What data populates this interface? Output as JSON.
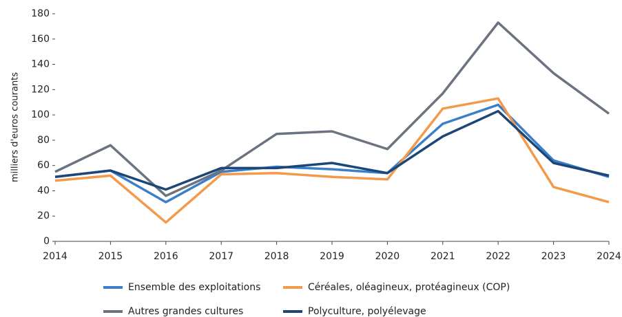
{
  "chart_data": {
    "type": "line",
    "y_label": "milliers d'euros courants",
    "categories": [
      "2014",
      "2015",
      "2016",
      "2017",
      "2018",
      "2019",
      "2020",
      "2021",
      "2022",
      "2023",
      "2024"
    ],
    "series": [
      {
        "name": "Ensemble des exploitations",
        "color": "#3a7fc8",
        "values": [
          51,
          56,
          31,
          55,
          59,
          57,
          54,
          93,
          108,
          64,
          51
        ]
      },
      {
        "name": "Céréales, oléagineux, protéagineux (COP)",
        "color": "#f39a4a",
        "values": [
          48,
          52,
          15,
          53,
          54,
          51,
          49,
          105,
          113,
          43,
          31
        ]
      },
      {
        "name": "Autres grandes cultures",
        "color": "#6b7280",
        "values": [
          55,
          76,
          36,
          56,
          85,
          87,
          73,
          117,
          173,
          133,
          101
        ]
      },
      {
        "name": "Polyculture, polyélevage",
        "color": "#1c4677",
        "values": [
          51,
          56,
          41,
          58,
          58,
          62,
          54,
          83,
          103,
          62,
          52
        ]
      }
    ],
    "ylim": [
      0,
      180
    ],
    "yticks": [
      0,
      20,
      40,
      60,
      80,
      100,
      120,
      140,
      160,
      180
    ],
    "grid": false
  }
}
